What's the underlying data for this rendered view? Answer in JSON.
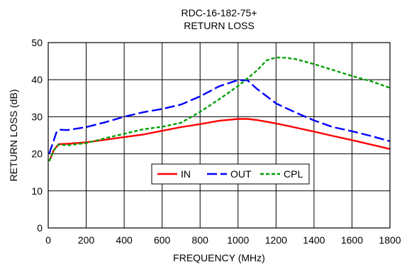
{
  "chart_data": {
    "type": "line",
    "title": "RDC-16-182-75+",
    "subtitle": "RETURN LOSS",
    "xlabel": "FREQUENCY (MHz)",
    "ylabel": "RETURN LOSS (dB)",
    "xlim": [
      0,
      1800
    ],
    "ylim": [
      0,
      50
    ],
    "xticks": [
      "0",
      "200",
      "400",
      "600",
      "800",
      "1000",
      "1200",
      "1400",
      "1600",
      "1800"
    ],
    "yticks": [
      "0",
      "10",
      "20",
      "30",
      "40",
      "50"
    ],
    "grid": true,
    "legend_position": "center",
    "series": [
      {
        "name": "IN",
        "color": "#ff0000",
        "dash": "solid",
        "x": [
          5,
          30,
          55,
          100,
          200,
          300,
          400,
          500,
          600,
          700,
          800,
          900,
          1000,
          1050,
          1100,
          1200,
          1300,
          1400,
          1500,
          1600,
          1700,
          1800
        ],
        "y": [
          18,
          21,
          22.6,
          22.7,
          23.1,
          23.8,
          24.5,
          25.2,
          26.2,
          27.2,
          28.0,
          28.9,
          29.4,
          29.4,
          29.1,
          28.2,
          27.1,
          26.0,
          24.8,
          23.7,
          22.5,
          21.3
        ]
      },
      {
        "name": "OUT",
        "color": "#0000ff",
        "dash": "dashed",
        "x": [
          5,
          25,
          45,
          65,
          100,
          200,
          300,
          400,
          500,
          600,
          700,
          800,
          900,
          1000,
          1050,
          1100,
          1200,
          1300,
          1400,
          1500,
          1600,
          1700,
          1800
        ],
        "y": [
          20,
          23,
          26,
          26.5,
          26.4,
          27.2,
          28.5,
          30.0,
          31.2,
          32.1,
          33.3,
          35.5,
          38.2,
          39.9,
          39.8,
          37.5,
          33.6,
          31.2,
          29.0,
          27.2,
          26.1,
          24.8,
          23.4
        ]
      },
      {
        "name": "CPL",
        "color": "#00a000",
        "dash": "dotted",
        "x": [
          5,
          30,
          55,
          100,
          200,
          300,
          400,
          500,
          600,
          700,
          800,
          900,
          1000,
          1100,
          1150,
          1200,
          1250,
          1300,
          1400,
          1500,
          1600,
          1700,
          1800
        ],
        "y": [
          18,
          21,
          22.5,
          22.3,
          22.9,
          24.2,
          25.4,
          26.6,
          27.3,
          28.4,
          31.3,
          34.7,
          38.3,
          42.5,
          45.2,
          46.0,
          45.9,
          45.6,
          44.2,
          42.6,
          41.0,
          39.6,
          37.8
        ]
      }
    ]
  }
}
